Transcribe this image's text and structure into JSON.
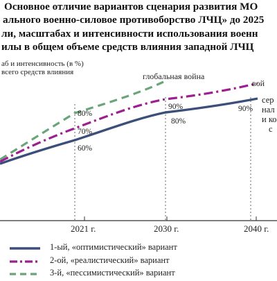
{
  "title_lines": [
    "Основное отличие вариантов сценария развития МО",
    "ального военно-силовое противоборство ЛЧЦ» до 2025",
    "ли, масштабах и интенсивности использования военн",
    "илы в общем объеме средств влияния западной ЛЧЦ"
  ],
  "chart_data": {
    "type": "line",
    "ylabel_lines": [
      "аб и интенсивность (в %)",
      "всего средств влияния"
    ],
    "x_ticks": [
      "2021 г.",
      "2030 г.",
      "2040 г."
    ],
    "series": [
      {
        "name": "1-ый, «оптимистический» вариант",
        "color": "#3c4f7a",
        "style": "solid",
        "points_pct": [
          {
            "tick": "2021 г.",
            "value": 60
          },
          {
            "tick": "2030 г.",
            "value": 80
          },
          {
            "tick": "2040 г.",
            "value": 90
          }
        ]
      },
      {
        "name": "2-ой, «реалистический» вариант",
        "color": "#9b1f8f",
        "style": "dashdot",
        "points_pct": [
          {
            "tick": "2021 г.",
            "value": 70
          },
          {
            "tick": "2030 г.",
            "value": 90
          }
        ]
      },
      {
        "name": "3-й, «пессимистический» вариант",
        "color": "#6aa57a",
        "style": "dashed",
        "points_pct": [
          {
            "tick": "2021 г.",
            "value": 80
          }
        ]
      }
    ],
    "annotations": {
      "global_war": "глобальная война",
      "right_top": "вой",
      "right_block": [
        "сер",
        "нал",
        "и ко",
        "с"
      ]
    },
    "value_labels": [
      "80%",
      "70%",
      "60%",
      "90%",
      "80%",
      "90%"
    ]
  },
  "legend": [
    {
      "label": "1-ый, «оптимистический» вариант",
      "color": "#3c4f7a",
      "style": "solid"
    },
    {
      "label": "2-ой, «реалистический» вариант",
      "color": "#9b1f8f",
      "style": "dashdot"
    },
    {
      "label": "3-й, «пессимистический» вариант",
      "color": "#6aa57a",
      "style": "dashed"
    }
  ]
}
